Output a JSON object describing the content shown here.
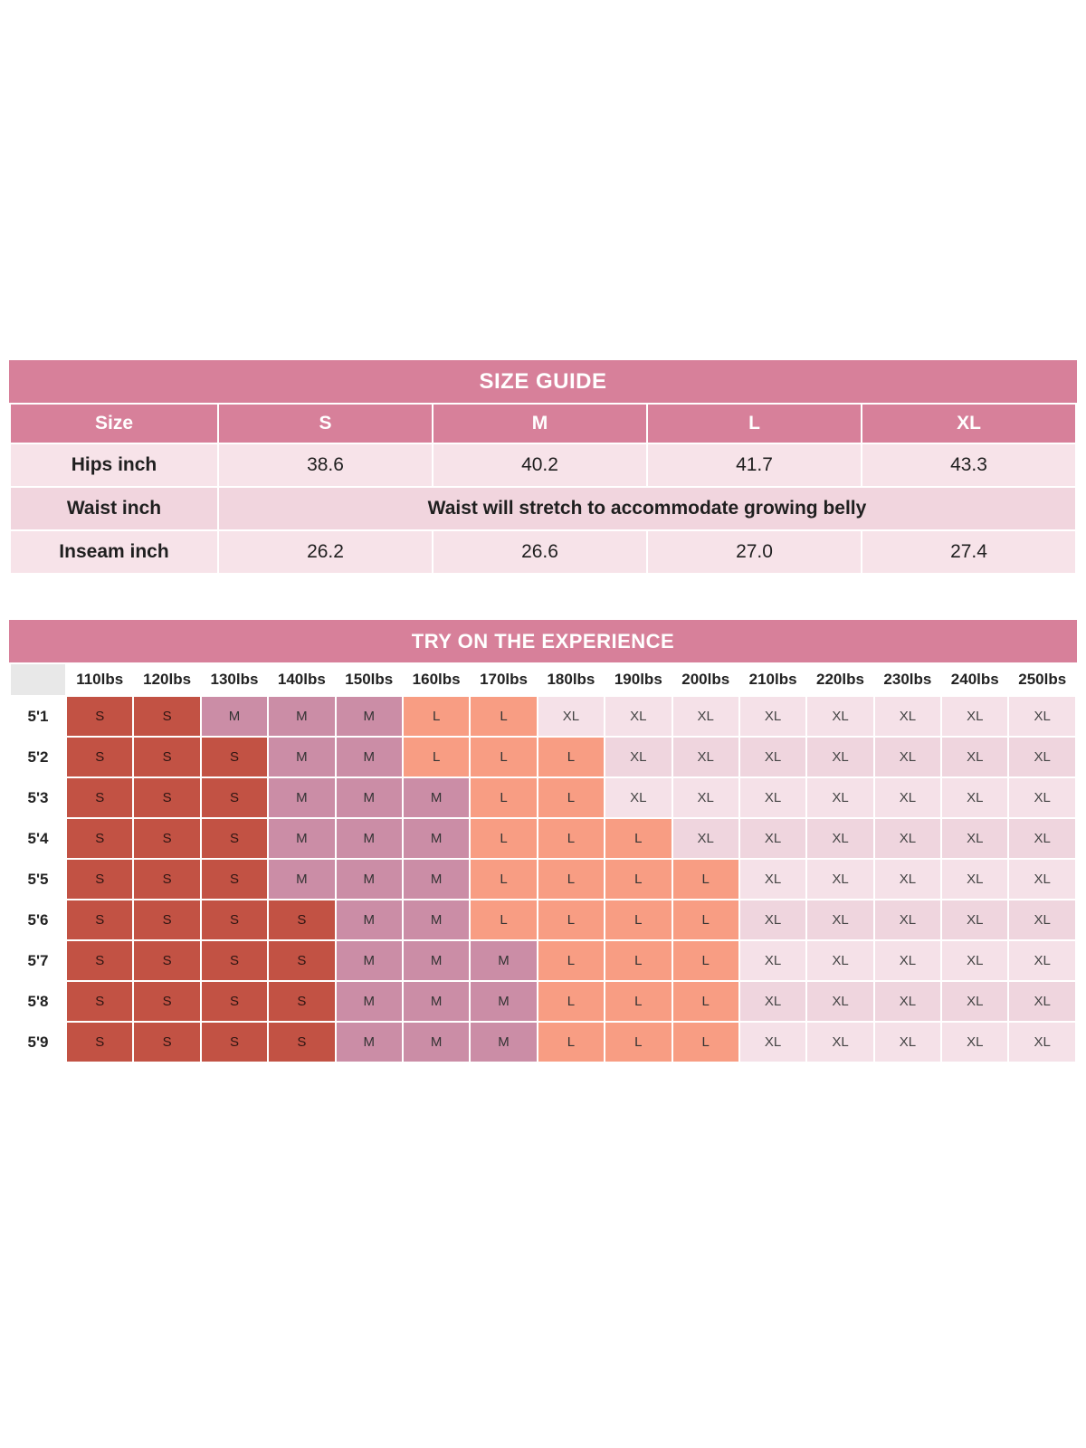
{
  "colors": {
    "header_pink": "#d7809a",
    "row_light": "#f7e3e9",
    "row_dark": "#f1d5de",
    "size_s": "#c25244",
    "size_m": "#cb8da6",
    "size_l": "#f89d83",
    "size_xl_light": "#f5e1e8",
    "size_xl_dark": "#efd5de",
    "corner_gray": "#e8e8e8",
    "text_dark": "#1f1f1f"
  },
  "chart_data": [
    {
      "type": "table",
      "title": "SIZE GUIDE",
      "columns": [
        "Size",
        "S",
        "M",
        "L",
        "XL"
      ],
      "rows": [
        {
          "label": "Hips inch",
          "values": [
            "38.6",
            "40.2",
            "41.7",
            "43.3"
          ]
        },
        {
          "label": "Waist inch",
          "note": "Waist will stretch to accommodate growing belly"
        },
        {
          "label": "Inseam inch",
          "values": [
            "26.2",
            "26.6",
            "27.0",
            "27.4"
          ]
        }
      ]
    },
    {
      "type": "heatmap",
      "title": "TRY ON THE EXPERIENCE",
      "x_labels": [
        "110lbs",
        "120lbs",
        "130lbs",
        "140lbs",
        "150lbs",
        "160lbs",
        "170lbs",
        "180lbs",
        "190lbs",
        "200lbs",
        "210lbs",
        "220lbs",
        "230lbs",
        "240lbs",
        "250lbs"
      ],
      "y_labels": [
        "5'1",
        "5'2",
        "5'3",
        "5'4",
        "5'5",
        "5'6",
        "5'7",
        "5'8",
        "5'9"
      ],
      "values": [
        [
          "S",
          "S",
          "M",
          "M",
          "M",
          "L",
          "L",
          "XL",
          "XL",
          "XL",
          "XL",
          "XL",
          "XL",
          "XL",
          "XL"
        ],
        [
          "S",
          "S",
          "S",
          "M",
          "M",
          "L",
          "L",
          "L",
          "XL",
          "XL",
          "XL",
          "XL",
          "XL",
          "XL",
          "XL"
        ],
        [
          "S",
          "S",
          "S",
          "M",
          "M",
          "M",
          "L",
          "L",
          "XL",
          "XL",
          "XL",
          "XL",
          "XL",
          "XL",
          "XL"
        ],
        [
          "S",
          "S",
          "S",
          "M",
          "M",
          "M",
          "L",
          "L",
          "L",
          "XL",
          "XL",
          "XL",
          "XL",
          "XL",
          "XL"
        ],
        [
          "S",
          "S",
          "S",
          "M",
          "M",
          "M",
          "L",
          "L",
          "L",
          "L",
          "XL",
          "XL",
          "XL",
          "XL",
          "XL"
        ],
        [
          "S",
          "S",
          "S",
          "S",
          "M",
          "M",
          "L",
          "L",
          "L",
          "L",
          "XL",
          "XL",
          "XL",
          "XL",
          "XL"
        ],
        [
          "S",
          "S",
          "S",
          "S",
          "M",
          "M",
          "M",
          "L",
          "L",
          "L",
          "XL",
          "XL",
          "XL",
          "XL",
          "XL"
        ],
        [
          "S",
          "S",
          "S",
          "S",
          "M",
          "M",
          "M",
          "L",
          "L",
          "L",
          "XL",
          "XL",
          "XL",
          "XL",
          "XL"
        ],
        [
          "S",
          "S",
          "S",
          "S",
          "M",
          "M",
          "M",
          "L",
          "L",
          "L",
          "XL",
          "XL",
          "XL",
          "XL",
          "XL"
        ]
      ]
    }
  ]
}
